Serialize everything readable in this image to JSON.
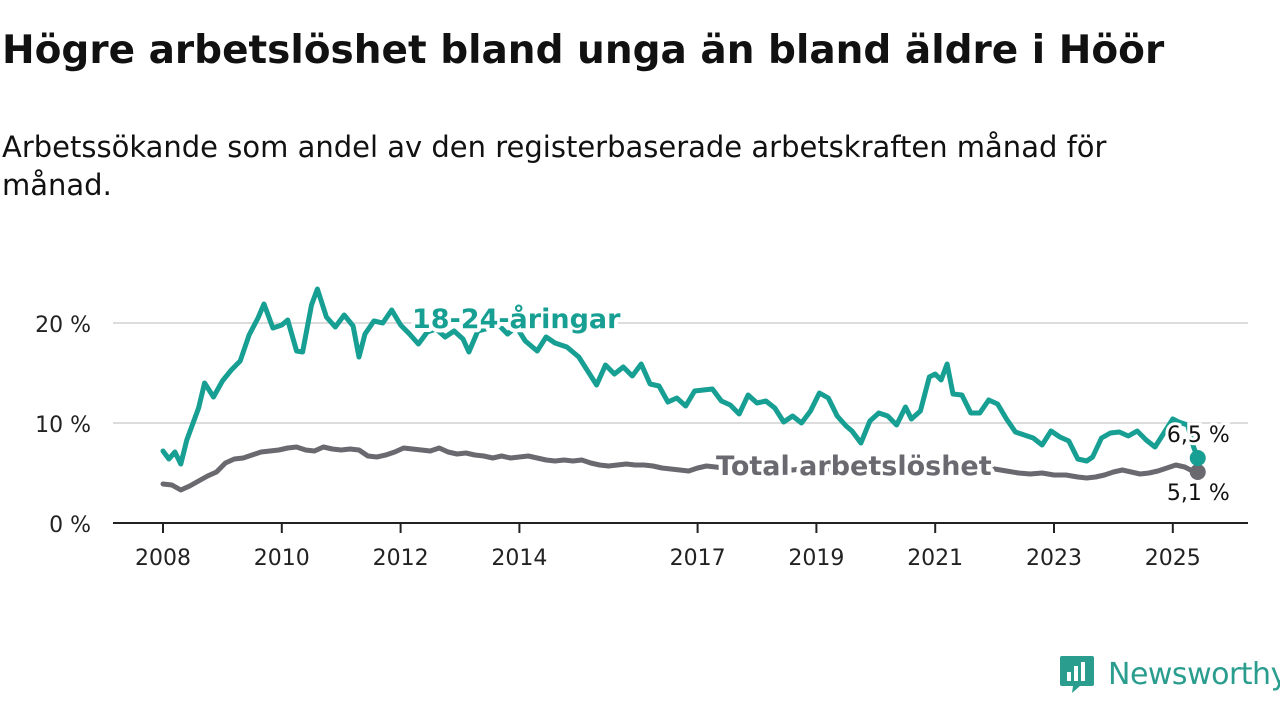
{
  "title": "Högre arbetslöshet bland unga än bland äldre i Höör",
  "subtitle": "Arbetssökande som andel av den registerbaserade arbetskraften månad för månad.",
  "brand": {
    "name": "Newsworthy",
    "icon": "newsworthy-logo-icon"
  },
  "colors": {
    "youth": "#169f92",
    "total": "#6b6970",
    "grid": "#dcdcdc",
    "axis": "#222222"
  },
  "chart_data": {
    "type": "line",
    "xlim": [
      2008,
      2025.6
    ],
    "ylim": [
      0,
      23
    ],
    "yticks": [
      {
        "value": 0,
        "label": "0 %"
      },
      {
        "value": 10,
        "label": "10 %"
      },
      {
        "value": 20,
        "label": "20 %"
      }
    ],
    "xticks": [
      {
        "value": 2008,
        "label": "2008"
      },
      {
        "value": 2010,
        "label": "2010"
      },
      {
        "value": 2012,
        "label": "2012"
      },
      {
        "value": 2014,
        "label": "2014"
      },
      {
        "value": 2017,
        "label": "2017"
      },
      {
        "value": 2019,
        "label": "2019"
      },
      {
        "value": 2021,
        "label": "2021"
      },
      {
        "value": 2023,
        "label": "2023"
      },
      {
        "value": 2025,
        "label": "2025"
      }
    ],
    "grid": true,
    "series": [
      {
        "name": "18-24-åringar",
        "end_label": "6,5 %",
        "points": [
          [
            2008.0,
            7.2
          ],
          [
            2008.1,
            6.4
          ],
          [
            2008.2,
            7.1
          ],
          [
            2008.3,
            5.9
          ],
          [
            2008.4,
            8.3
          ],
          [
            2008.6,
            11.5
          ],
          [
            2008.7,
            14.0
          ],
          [
            2008.85,
            12.6
          ],
          [
            2009.0,
            14.2
          ],
          [
            2009.15,
            15.3
          ],
          [
            2009.3,
            16.2
          ],
          [
            2009.45,
            18.8
          ],
          [
            2009.6,
            20.5
          ],
          [
            2009.7,
            21.9
          ],
          [
            2009.85,
            19.5
          ],
          [
            2010.0,
            19.8
          ],
          [
            2010.1,
            20.3
          ],
          [
            2010.25,
            17.2
          ],
          [
            2010.35,
            17.1
          ],
          [
            2010.5,
            21.8
          ],
          [
            2010.6,
            23.4
          ],
          [
            2010.75,
            20.6
          ],
          [
            2010.9,
            19.6
          ],
          [
            2011.05,
            20.8
          ],
          [
            2011.2,
            19.7
          ],
          [
            2011.3,
            16.6
          ],
          [
            2011.4,
            18.9
          ],
          [
            2011.55,
            20.2
          ],
          [
            2011.7,
            20.0
          ],
          [
            2011.85,
            21.3
          ],
          [
            2012.0,
            19.8
          ],
          [
            2012.15,
            18.9
          ],
          [
            2012.3,
            17.9
          ],
          [
            2012.45,
            19.1
          ],
          [
            2012.6,
            19.4
          ],
          [
            2012.75,
            18.6
          ],
          [
            2012.9,
            19.2
          ],
          [
            2013.05,
            18.4
          ],
          [
            2013.15,
            17.1
          ],
          [
            2013.3,
            19.2
          ],
          [
            2013.5,
            19.5
          ],
          [
            2013.65,
            19.8
          ],
          [
            2013.8,
            18.9
          ],
          [
            2013.95,
            19.6
          ],
          [
            2014.1,
            18.2
          ],
          [
            2014.3,
            17.2
          ],
          [
            2014.45,
            18.6
          ],
          [
            2014.6,
            18.0
          ],
          [
            2014.8,
            17.6
          ],
          [
            2015.0,
            16.6
          ],
          [
            2015.15,
            15.2
          ],
          [
            2015.3,
            13.8
          ],
          [
            2015.45,
            15.8
          ],
          [
            2015.6,
            14.9
          ],
          [
            2015.75,
            15.6
          ],
          [
            2015.9,
            14.7
          ],
          [
            2016.05,
            15.9
          ],
          [
            2016.2,
            13.9
          ],
          [
            2016.35,
            13.7
          ],
          [
            2016.5,
            12.1
          ],
          [
            2016.65,
            12.5
          ],
          [
            2016.8,
            11.7
          ],
          [
            2016.95,
            13.2
          ],
          [
            2017.1,
            13.3
          ],
          [
            2017.25,
            13.4
          ],
          [
            2017.4,
            12.2
          ],
          [
            2017.55,
            11.8
          ],
          [
            2017.7,
            10.9
          ],
          [
            2017.85,
            12.8
          ],
          [
            2018.0,
            12.0
          ],
          [
            2018.15,
            12.2
          ],
          [
            2018.3,
            11.5
          ],
          [
            2018.45,
            10.1
          ],
          [
            2018.6,
            10.7
          ],
          [
            2018.75,
            10.0
          ],
          [
            2018.9,
            11.2
          ],
          [
            2019.05,
            13.0
          ],
          [
            2019.2,
            12.5
          ],
          [
            2019.35,
            10.7
          ],
          [
            2019.5,
            9.7
          ],
          [
            2019.6,
            9.2
          ],
          [
            2019.75,
            8.0
          ],
          [
            2019.9,
            10.2
          ],
          [
            2020.05,
            11.0
          ],
          [
            2020.2,
            10.7
          ],
          [
            2020.35,
            9.8
          ],
          [
            2020.5,
            11.6
          ],
          [
            2020.6,
            10.4
          ],
          [
            2020.75,
            11.2
          ],
          [
            2020.9,
            14.6
          ],
          [
            2021.0,
            14.9
          ],
          [
            2021.1,
            14.3
          ],
          [
            2021.2,
            15.9
          ],
          [
            2021.3,
            12.9
          ],
          [
            2021.45,
            12.8
          ],
          [
            2021.6,
            11.0
          ],
          [
            2021.75,
            11.0
          ],
          [
            2021.9,
            12.3
          ],
          [
            2022.05,
            11.9
          ],
          [
            2022.2,
            10.4
          ],
          [
            2022.35,
            9.1
          ],
          [
            2022.5,
            8.8
          ],
          [
            2022.65,
            8.5
          ],
          [
            2022.8,
            7.8
          ],
          [
            2022.95,
            9.2
          ],
          [
            2023.1,
            8.6
          ],
          [
            2023.25,
            8.2
          ],
          [
            2023.4,
            6.4
          ],
          [
            2023.55,
            6.2
          ],
          [
            2023.65,
            6.6
          ],
          [
            2023.8,
            8.5
          ],
          [
            2023.95,
            9.0
          ],
          [
            2024.1,
            9.1
          ],
          [
            2024.25,
            8.7
          ],
          [
            2024.4,
            9.2
          ],
          [
            2024.55,
            8.3
          ],
          [
            2024.7,
            7.6
          ],
          [
            2024.85,
            9.0
          ],
          [
            2025.0,
            10.4
          ],
          [
            2025.1,
            10.1
          ],
          [
            2025.25,
            9.8
          ],
          [
            2025.35,
            7.6
          ],
          [
            2025.42,
            6.5
          ]
        ]
      },
      {
        "name": "Total arbetslöshet",
        "end_label": "5,1 %",
        "points": [
          [
            2008.0,
            3.9
          ],
          [
            2008.15,
            3.8
          ],
          [
            2008.3,
            3.3
          ],
          [
            2008.45,
            3.7
          ],
          [
            2008.6,
            4.2
          ],
          [
            2008.75,
            4.7
          ],
          [
            2008.9,
            5.1
          ],
          [
            2009.05,
            6.0
          ],
          [
            2009.2,
            6.4
          ],
          [
            2009.35,
            6.5
          ],
          [
            2009.5,
            6.8
          ],
          [
            2009.65,
            7.1
          ],
          [
            2009.8,
            7.2
          ],
          [
            2009.95,
            7.3
          ],
          [
            2010.1,
            7.5
          ],
          [
            2010.25,
            7.6
          ],
          [
            2010.4,
            7.3
          ],
          [
            2010.55,
            7.2
          ],
          [
            2010.7,
            7.6
          ],
          [
            2010.85,
            7.4
          ],
          [
            2011.0,
            7.3
          ],
          [
            2011.15,
            7.4
          ],
          [
            2011.3,
            7.3
          ],
          [
            2011.45,
            6.7
          ],
          [
            2011.6,
            6.6
          ],
          [
            2011.75,
            6.8
          ],
          [
            2011.9,
            7.1
          ],
          [
            2012.05,
            7.5
          ],
          [
            2012.2,
            7.4
          ],
          [
            2012.35,
            7.3
          ],
          [
            2012.5,
            7.2
          ],
          [
            2012.65,
            7.5
          ],
          [
            2012.8,
            7.1
          ],
          [
            2012.95,
            6.9
          ],
          [
            2013.1,
            7.0
          ],
          [
            2013.25,
            6.8
          ],
          [
            2013.4,
            6.7
          ],
          [
            2013.55,
            6.5
          ],
          [
            2013.7,
            6.7
          ],
          [
            2013.85,
            6.5
          ],
          [
            2014.0,
            6.6
          ],
          [
            2014.15,
            6.7
          ],
          [
            2014.3,
            6.5
          ],
          [
            2014.45,
            6.3
          ],
          [
            2014.6,
            6.2
          ],
          [
            2014.75,
            6.3
          ],
          [
            2014.9,
            6.2
          ],
          [
            2015.05,
            6.3
          ],
          [
            2015.2,
            6.0
          ],
          [
            2015.35,
            5.8
          ],
          [
            2015.5,
            5.7
          ],
          [
            2015.65,
            5.8
          ],
          [
            2015.8,
            5.9
          ],
          [
            2015.95,
            5.8
          ],
          [
            2016.1,
            5.8
          ],
          [
            2016.25,
            5.7
          ],
          [
            2016.4,
            5.5
          ],
          [
            2016.55,
            5.4
          ],
          [
            2016.7,
            5.3
          ],
          [
            2016.85,
            5.2
          ],
          [
            2017.0,
            5.5
          ],
          [
            2017.15,
            5.7
          ],
          [
            2017.3,
            5.6
          ],
          [
            2017.45,
            5.5
          ],
          [
            2017.6,
            5.5
          ],
          [
            2017.8,
            5.5
          ],
          [
            2018.0,
            5.4
          ],
          [
            2018.3,
            5.6
          ],
          [
            2018.6,
            5.3
          ],
          [
            2018.9,
            5.5
          ],
          [
            2019.2,
            5.4
          ],
          [
            2019.5,
            5.5
          ],
          [
            2019.8,
            5.6
          ],
          [
            2020.1,
            5.5
          ],
          [
            2020.4,
            5.6
          ],
          [
            2020.7,
            5.7
          ],
          [
            2021.0,
            5.6
          ],
          [
            2021.3,
            5.5
          ],
          [
            2021.6,
            5.6
          ],
          [
            2021.9,
            5.5
          ],
          [
            2022.0,
            5.4
          ],
          [
            2022.2,
            5.2
          ],
          [
            2022.4,
            5.0
          ],
          [
            2022.6,
            4.9
          ],
          [
            2022.8,
            5.0
          ],
          [
            2023.0,
            4.8
          ],
          [
            2023.2,
            4.8
          ],
          [
            2023.4,
            4.6
          ],
          [
            2023.55,
            4.5
          ],
          [
            2023.7,
            4.6
          ],
          [
            2023.85,
            4.8
          ],
          [
            2024.0,
            5.1
          ],
          [
            2024.15,
            5.3
          ],
          [
            2024.3,
            5.1
          ],
          [
            2024.45,
            4.9
          ],
          [
            2024.6,
            5.0
          ],
          [
            2024.75,
            5.2
          ],
          [
            2024.9,
            5.5
          ],
          [
            2025.05,
            5.8
          ],
          [
            2025.2,
            5.6
          ],
          [
            2025.3,
            5.3
          ],
          [
            2025.42,
            5.1
          ]
        ]
      }
    ]
  }
}
